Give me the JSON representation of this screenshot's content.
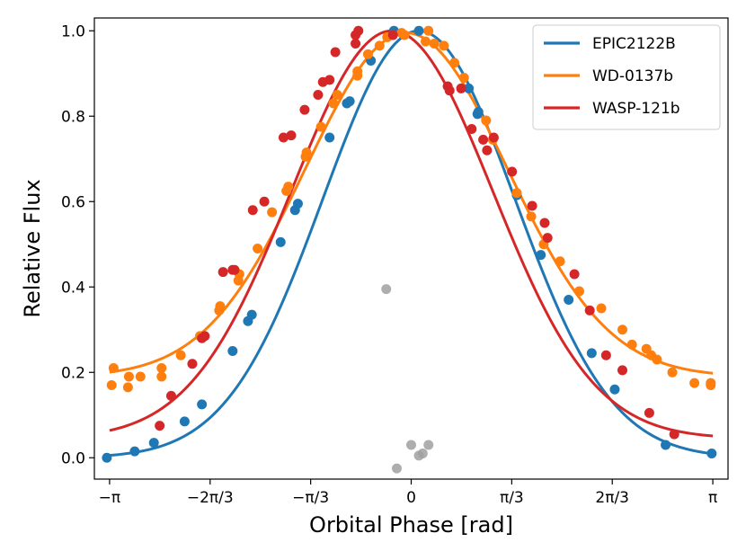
{
  "chart_data": {
    "type": "scatter",
    "xlabel": "Orbital Phase [rad]",
    "ylabel": "Relative Flux",
    "xlim": [
      -3.3,
      3.3
    ],
    "ylim": [
      -0.05,
      1.03
    ],
    "x_ticks": [
      {
        "value": -3.14159,
        "label": "−π"
      },
      {
        "value": -2.0944,
        "label": "−2π/3"
      },
      {
        "value": -1.0472,
        "label": "−π/3"
      },
      {
        "value": 0,
        "label": "0"
      },
      {
        "value": 1.0472,
        "label": "π/3"
      },
      {
        "value": 2.0944,
        "label": "2π/3"
      },
      {
        "value": 3.14159,
        "label": "π"
      }
    ],
    "y_ticks": [
      {
        "value": 0.0,
        "label": "0.0"
      },
      {
        "value": 0.2,
        "label": "0.2"
      },
      {
        "value": 0.4,
        "label": "0.4"
      },
      {
        "value": 0.6,
        "label": "0.6"
      },
      {
        "value": 0.8,
        "label": "0.8"
      },
      {
        "value": 1.0,
        "label": "1.0"
      }
    ],
    "grid": false,
    "legend_position": "top-right",
    "series": [
      {
        "name": "EPIC2122B",
        "color": "#1f77b4",
        "model": {
          "center": 0.08,
          "width": 1.0,
          "baseline": 0.0,
          "peak": 1.0
        },
        "points": [
          [
            -3.17,
            0.0
          ],
          [
            -2.88,
            0.015
          ],
          [
            -2.68,
            0.035
          ],
          [
            -2.36,
            0.085
          ],
          [
            -2.18,
            0.125
          ],
          [
            -1.86,
            0.25
          ],
          [
            -1.7,
            0.32
          ],
          [
            -1.66,
            0.335
          ],
          [
            -1.36,
            0.505
          ],
          [
            -1.21,
            0.58
          ],
          [
            -1.18,
            0.595
          ],
          [
            -0.85,
            0.75
          ],
          [
            -0.67,
            0.83
          ],
          [
            -0.64,
            0.835
          ],
          [
            -0.42,
            0.93
          ],
          [
            -0.18,
            1.0
          ],
          [
            0.08,
            1.0
          ],
          [
            0.6,
            0.865
          ],
          [
            0.69,
            0.805
          ],
          [
            0.7,
            0.81
          ],
          [
            1.1,
            0.615
          ],
          [
            1.35,
            0.475
          ],
          [
            1.64,
            0.37
          ],
          [
            1.88,
            0.245
          ],
          [
            2.12,
            0.16
          ],
          [
            2.65,
            0.03
          ],
          [
            3.13,
            0.01
          ]
        ]
      },
      {
        "name": "WD-0137b",
        "color": "#ff7f0e",
        "model": {
          "center": -0.05,
          "width": 1.05,
          "baseline": 0.19,
          "peak": 0.995
        },
        "points": [
          [
            -3.12,
            0.17
          ],
          [
            -3.1,
            0.21
          ],
          [
            -2.95,
            0.165
          ],
          [
            -2.94,
            0.19
          ],
          [
            -2.82,
            0.19
          ],
          [
            -2.6,
            0.21
          ],
          [
            -2.6,
            0.19
          ],
          [
            -2.4,
            0.24
          ],
          [
            -2.2,
            0.285
          ],
          [
            -2.0,
            0.345
          ],
          [
            -1.99,
            0.355
          ],
          [
            -1.8,
            0.415
          ],
          [
            -1.79,
            0.43
          ],
          [
            -1.6,
            0.49
          ],
          [
            -1.45,
            0.575
          ],
          [
            -1.3,
            0.625
          ],
          [
            -1.28,
            0.635
          ],
          [
            -1.1,
            0.705
          ],
          [
            -1.09,
            0.715
          ],
          [
            -0.94,
            0.775
          ],
          [
            -0.81,
            0.83
          ],
          [
            -0.77,
            0.85
          ],
          [
            -0.56,
            0.895
          ],
          [
            -0.56,
            0.905
          ],
          [
            -0.45,
            0.945
          ],
          [
            -0.33,
            0.965
          ],
          [
            -0.25,
            0.985
          ],
          [
            -0.1,
            0.995
          ],
          [
            -0.07,
            0.99
          ],
          [
            0.15,
            0.975
          ],
          [
            0.18,
            1.0
          ],
          [
            0.24,
            0.97
          ],
          [
            0.34,
            0.965
          ],
          [
            0.45,
            0.925
          ],
          [
            0.55,
            0.89
          ],
          [
            0.78,
            0.79
          ],
          [
            0.85,
            0.745
          ],
          [
            1.1,
            0.62
          ],
          [
            1.25,
            0.565
          ],
          [
            1.38,
            0.5
          ],
          [
            1.55,
            0.46
          ],
          [
            1.75,
            0.39
          ],
          [
            1.98,
            0.35
          ],
          [
            2.2,
            0.3
          ],
          [
            2.3,
            0.265
          ],
          [
            2.45,
            0.255
          ],
          [
            2.5,
            0.24
          ],
          [
            2.56,
            0.23
          ],
          [
            2.72,
            0.2
          ],
          [
            2.95,
            0.175
          ],
          [
            3.12,
            0.17
          ],
          [
            3.12,
            0.175
          ]
        ]
      },
      {
        "name": "WASP-121b",
        "color": "#d62728",
        "model": {
          "center": -0.2,
          "width": 1.05,
          "baseline": 0.045,
          "peak": 1.0
        },
        "points": [
          [
            -2.62,
            0.075
          ],
          [
            -2.5,
            0.145
          ],
          [
            -2.28,
            0.22
          ],
          [
            -2.18,
            0.28
          ],
          [
            -2.15,
            0.285
          ],
          [
            -1.96,
            0.435
          ],
          [
            -1.86,
            0.44
          ],
          [
            -1.84,
            0.44
          ],
          [
            -1.65,
            0.58
          ],
          [
            -1.53,
            0.6
          ],
          [
            -1.33,
            0.75
          ],
          [
            -1.25,
            0.755
          ],
          [
            -1.11,
            0.815
          ],
          [
            -0.97,
            0.85
          ],
          [
            -0.92,
            0.88
          ],
          [
            -0.85,
            0.885
          ],
          [
            -0.79,
            0.95
          ],
          [
            -0.58,
            0.97
          ],
          [
            -0.58,
            0.99
          ],
          [
            -0.55,
            1.0
          ],
          [
            -0.19,
            0.99
          ],
          [
            0.38,
            0.87
          ],
          [
            0.4,
            0.86
          ],
          [
            0.52,
            0.865
          ],
          [
            0.63,
            0.77
          ],
          [
            0.75,
            0.745
          ],
          [
            0.79,
            0.72
          ],
          [
            0.86,
            0.75
          ],
          [
            1.05,
            0.67
          ],
          [
            1.26,
            0.59
          ],
          [
            1.39,
            0.55
          ],
          [
            1.42,
            0.515
          ],
          [
            1.7,
            0.43
          ],
          [
            1.86,
            0.345
          ],
          [
            2.03,
            0.24
          ],
          [
            2.2,
            0.205
          ],
          [
            2.48,
            0.105
          ],
          [
            2.74,
            0.055
          ]
        ]
      },
      {
        "name": "",
        "color": "#a0a0a0",
        "model": null,
        "points": [
          [
            -0.26,
            0.395
          ],
          [
            -0.15,
            -0.025
          ],
          [
            0.0,
            0.03
          ],
          [
            0.08,
            0.005
          ],
          [
            0.12,
            0.01
          ],
          [
            0.18,
            0.03
          ]
        ]
      }
    ]
  }
}
